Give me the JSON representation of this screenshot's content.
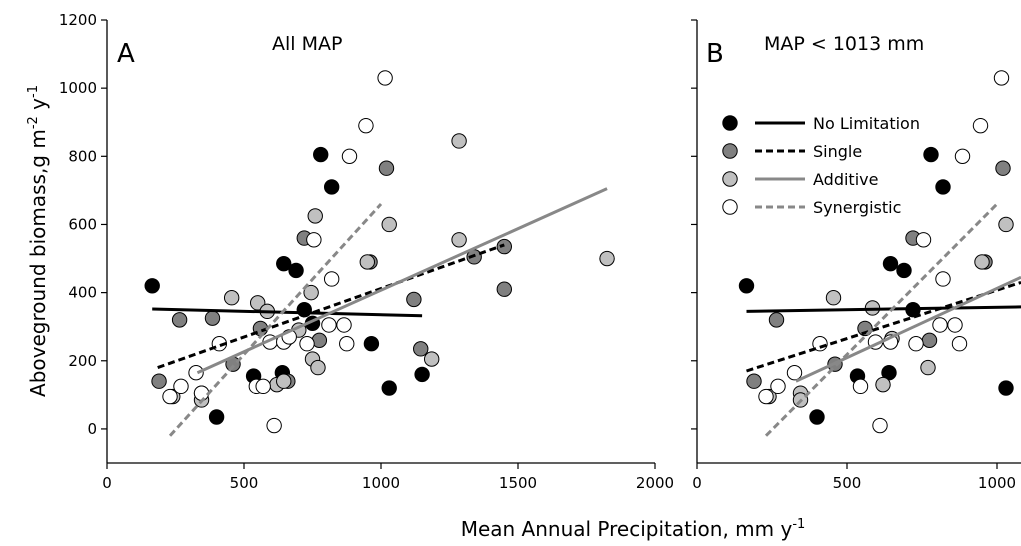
{
  "chart_data": [
    {
      "type": "scatter",
      "panel": "A",
      "title": "All MAP",
      "xlabel": "Mean Annual Precipitation, mm y",
      "xlabel_sup": "-1",
      "ylabel_parts": [
        "Aboveground biomass,g m",
        "-2",
        " y",
        "-1"
      ],
      "xlim": [
        0,
        2000
      ],
      "ylim": [
        -100,
        1200
      ],
      "xticks": [
        0,
        500,
        1000,
        1500,
        2000
      ],
      "yticks": [
        0,
        200,
        400,
        600,
        800,
        1000,
        1200
      ],
      "grid": false,
      "series": [
        {
          "name": "No Limitation",
          "fill": "#000000",
          "points": [
            [
              165,
              420
            ],
            [
              400,
              35
            ],
            [
              535,
              155
            ],
            [
              640,
              165
            ],
            [
              645,
              485
            ],
            [
              690,
              465
            ],
            [
              720,
              350
            ],
            [
              750,
              310
            ],
            [
              780,
              805
            ],
            [
              820,
              710
            ],
            [
              965,
              250
            ],
            [
              1030,
              120
            ],
            [
              1150,
              160
            ]
          ]
        },
        {
          "name": "Single",
          "fill": "#808080",
          "points": [
            [
              190,
              140
            ],
            [
              265,
              320
            ],
            [
              385,
              325
            ],
            [
              460,
              190
            ],
            [
              560,
              295
            ],
            [
              660,
              140
            ],
            [
              720,
              560
            ],
            [
              775,
              260
            ],
            [
              960,
              490
            ],
            [
              1020,
              765
            ],
            [
              1120,
              380
            ],
            [
              1145,
              235
            ],
            [
              1340,
              505
            ],
            [
              1450,
              535
            ],
            [
              1450,
              410
            ]
          ]
        },
        {
          "name": "Additive",
          "fill": "#c0c0c0",
          "points": [
            [
              240,
              95
            ],
            [
              345,
              105
            ],
            [
              345,
              85
            ],
            [
              455,
              385
            ],
            [
              550,
              370
            ],
            [
              585,
              345
            ],
            [
              620,
              130
            ],
            [
              645,
              140
            ],
            [
              650,
              260
            ],
            [
              700,
              290
            ],
            [
              745,
              400
            ],
            [
              750,
              205
            ],
            [
              760,
              625
            ],
            [
              770,
              180
            ],
            [
              950,
              490
            ],
            [
              1030,
              600
            ],
            [
              1185,
              205
            ],
            [
              1285,
              845
            ],
            [
              1285,
              555
            ],
            [
              1825,
              500
            ]
          ]
        },
        {
          "name": "Synergistic",
          "fill": "#ffffff",
          "points": [
            [
              230,
              95
            ],
            [
              270,
              125
            ],
            [
              325,
              165
            ],
            [
              345,
              105
            ],
            [
              410,
              250
            ],
            [
              545,
              125
            ],
            [
              570,
              125
            ],
            [
              595,
              255
            ],
            [
              610,
              10
            ],
            [
              645,
              255
            ],
            [
              665,
              270
            ],
            [
              730,
              250
            ],
            [
              755,
              555
            ],
            [
              810,
              305
            ],
            [
              820,
              440
            ],
            [
              865,
              305
            ],
            [
              875,
              250
            ],
            [
              885,
              800
            ],
            [
              945,
              890
            ],
            [
              1015,
              1030
            ]
          ]
        }
      ],
      "fit_lines": [
        {
          "name": "No Limitation",
          "x": [
            165,
            1150
          ],
          "y": [
            352,
            332
          ]
        },
        {
          "name": "Single",
          "x": [
            185,
            1450
          ],
          "y": [
            180,
            540
          ]
        },
        {
          "name": "Additive",
          "x": [
            330,
            1825
          ],
          "y": [
            165,
            705
          ]
        },
        {
          "name": "Synergistic",
          "x": [
            230,
            1000
          ],
          "y": [
            -20,
            660
          ]
        }
      ]
    },
    {
      "type": "scatter",
      "panel": "B",
      "title": "MAP < 1013 mm",
      "xlim": [
        0,
        1080
      ],
      "ylim": [
        -100,
        1200
      ],
      "xticks": [
        0,
        500,
        1000
      ],
      "yticks": [
        0,
        200,
        400,
        600,
        800,
        1000,
        1200
      ],
      "grid": false,
      "legend_position": "upper-left",
      "series": [
        {
          "name": "No Limitation",
          "fill": "#000000",
          "points": [
            [
              165,
              420
            ],
            [
              400,
              35
            ],
            [
              535,
              155
            ],
            [
              640,
              165
            ],
            [
              645,
              485
            ],
            [
              690,
              465
            ],
            [
              720,
              350
            ],
            [
              780,
              805
            ],
            [
              820,
              710
            ],
            [
              1030,
              120
            ]
          ]
        },
        {
          "name": "Single",
          "fill": "#808080",
          "points": [
            [
              190,
              140
            ],
            [
              265,
              320
            ],
            [
              460,
              190
            ],
            [
              560,
              295
            ],
            [
              720,
              560
            ],
            [
              775,
              260
            ],
            [
              960,
              490
            ],
            [
              1020,
              765
            ]
          ]
        },
        {
          "name": "Additive",
          "fill": "#c0c0c0",
          "points": [
            [
              240,
              95
            ],
            [
              345,
              105
            ],
            [
              345,
              85
            ],
            [
              455,
              385
            ],
            [
              585,
              355
            ],
            [
              620,
              130
            ],
            [
              650,
              265
            ],
            [
              770,
              180
            ],
            [
              950,
              490
            ],
            [
              1030,
              600
            ]
          ]
        },
        {
          "name": "Synergistic",
          "fill": "#ffffff",
          "points": [
            [
              230,
              95
            ],
            [
              270,
              125
            ],
            [
              325,
              165
            ],
            [
              410,
              250
            ],
            [
              545,
              125
            ],
            [
              595,
              255
            ],
            [
              610,
              10
            ],
            [
              645,
              255
            ],
            [
              730,
              250
            ],
            [
              755,
              555
            ],
            [
              810,
              305
            ],
            [
              820,
              440
            ],
            [
              860,
              305
            ],
            [
              875,
              250
            ],
            [
              885,
              800
            ],
            [
              945,
              890
            ],
            [
              1015,
              1030
            ]
          ]
        }
      ],
      "fit_lines": [
        {
          "name": "No Limitation",
          "x": [
            165,
            1080
          ],
          "y": [
            345,
            358
          ]
        },
        {
          "name": "Single",
          "x": [
            165,
            1080
          ],
          "y": [
            170,
            430
          ]
        },
        {
          "name": "Additive",
          "x": [
            330,
            1080
          ],
          "y": [
            140,
            445
          ]
        },
        {
          "name": "Synergistic",
          "x": [
            230,
            1000
          ],
          "y": [
            -20,
            660
          ]
        }
      ]
    }
  ],
  "legend": [
    {
      "label": "No Limitation",
      "fill": "#000000",
      "line_color": "#000000",
      "dashed": false
    },
    {
      "label": "Single",
      "fill": "#808080",
      "line_color": "#000000",
      "dashed": true
    },
    {
      "label": "Additive",
      "fill": "#c0c0c0",
      "line_color": "#888888",
      "dashed": false
    },
    {
      "label": "Synergistic",
      "fill": "#ffffff",
      "line_color": "#888888",
      "dashed": true
    }
  ]
}
